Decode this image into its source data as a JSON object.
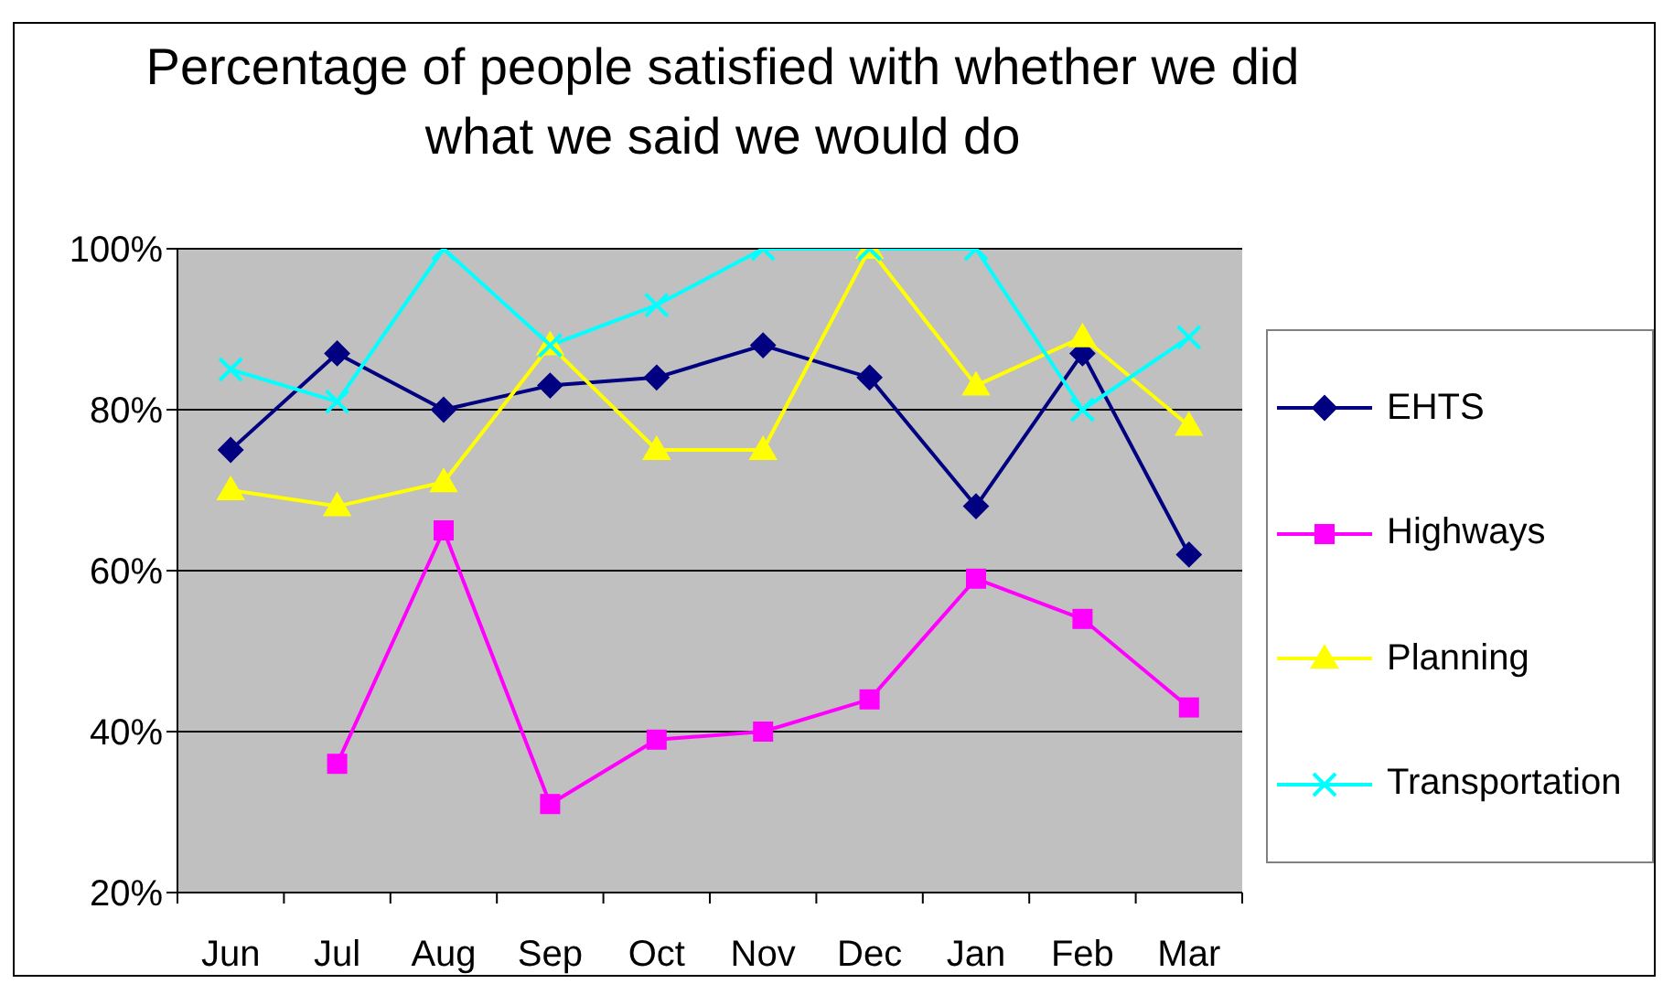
{
  "chart_data": {
    "type": "line",
    "title": "Percentage of people satisfied with whether we did what we said we would do",
    "categories": [
      "Jun",
      "Jul",
      "Aug",
      "Sep",
      "Oct",
      "Nov",
      "Dec",
      "Jan",
      "Feb",
      "Mar"
    ],
    "series": [
      {
        "name": "EHTS",
        "color": "#000080",
        "marker": "diamond",
        "values": [
          75,
          87,
          80,
          83,
          84,
          88,
          84,
          68,
          87,
          62
        ]
      },
      {
        "name": "Highways",
        "color": "#ff00ff",
        "marker": "square",
        "values": [
          null,
          36,
          65,
          31,
          39,
          40,
          44,
          59,
          54,
          43
        ]
      },
      {
        "name": "Planning",
        "color": "#ffff00",
        "marker": "triangle",
        "values": [
          70,
          68,
          71,
          88,
          75,
          75,
          100,
          83,
          89,
          78
        ]
      },
      {
        "name": "Transportation",
        "color": "#00ffff",
        "marker": "cross",
        "values": [
          85,
          81,
          100,
          88,
          93,
          100,
          100,
          100,
          80,
          89
        ]
      }
    ],
    "ylim": [
      20,
      100
    ],
    "yticks": [
      {
        "value": 20,
        "label": "20%"
      },
      {
        "value": 40,
        "label": "40%"
      },
      {
        "value": 60,
        "label": "60%"
      },
      {
        "value": 80,
        "label": "80%"
      },
      {
        "value": 100,
        "label": "100%"
      }
    ],
    "grid": "y",
    "legend": "right",
    "line_style": "solid"
  }
}
